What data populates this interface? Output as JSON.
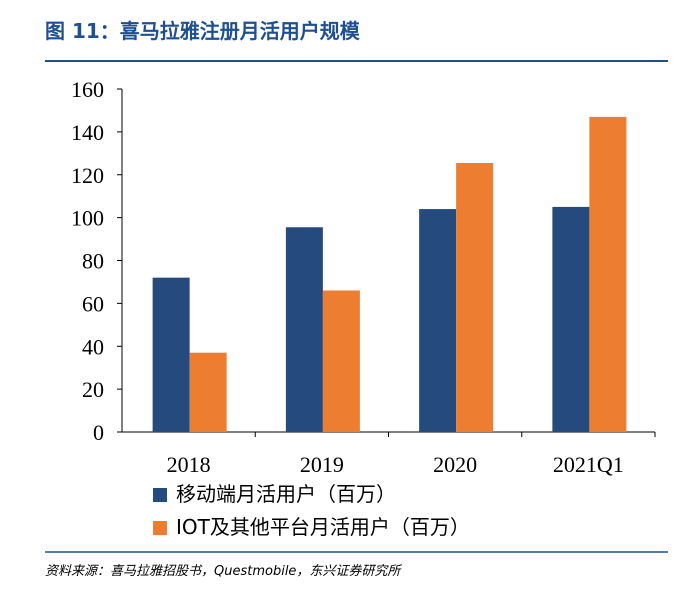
{
  "chart_data": {
    "type": "bar",
    "title": "图 11：喜马拉雅注册月活用户规模",
    "categories": [
      "2018",
      "2019",
      "2020",
      "2021Q1"
    ],
    "series": [
      {
        "name": "移动端月活用户（百万）",
        "color": "#254a7e",
        "values": [
          72,
          95.5,
          104,
          105
        ]
      },
      {
        "name": "IOT及其他平台月活用户（百万）",
        "color": "#ec7d31",
        "values": [
          37,
          66,
          125.5,
          147
        ]
      }
    ],
    "ylim": [
      0,
      160
    ],
    "yticks": [
      0,
      20,
      40,
      60,
      80,
      100,
      120,
      140,
      160
    ],
    "grid": false,
    "source": "资料来源：喜马拉雅招股书，Questmobile，东兴证券研究所"
  }
}
